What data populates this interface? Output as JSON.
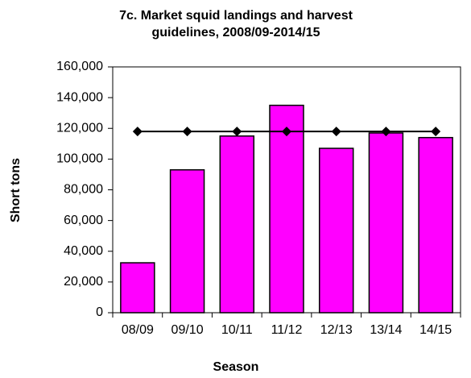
{
  "chart_data": {
    "type": "bar",
    "title": [
      "7c. Market squid landings and harvest",
      "guidelines, 2008/09-2014/15"
    ],
    "x_label": "Season",
    "y_label": "Short tons",
    "categories": [
      "08/09",
      "09/10",
      "10/11",
      "11/12",
      "12/13",
      "13/14",
      "14/15"
    ],
    "series": [
      {
        "type": "bar",
        "color": "#ff00ff",
        "values": [
          32500,
          93000,
          115000,
          135000,
          107000,
          117000,
          114000
        ]
      },
      {
        "type": "line",
        "color": "#000000",
        "values": [
          118000,
          118000,
          118000,
          118000,
          118000,
          118000,
          118000
        ]
      }
    ],
    "ylim": [
      0,
      160000
    ],
    "yticks": [
      0,
      {
        "value": 20000,
        "label": "20,000"
      },
      {
        "value": 40000,
        "label": "40,000"
      },
      {
        "value": 60000,
        "label": "60,000"
      },
      {
        "value": 80000,
        "label": "80,000"
      },
      {
        "value": 100000,
        "label": "100,000"
      },
      {
        "value": 120000,
        "label": "120,000"
      },
      {
        "value": 140000,
        "label": "140,000"
      },
      {
        "value": 160000,
        "label": "160,000"
      }
    ],
    "grid": false
  }
}
